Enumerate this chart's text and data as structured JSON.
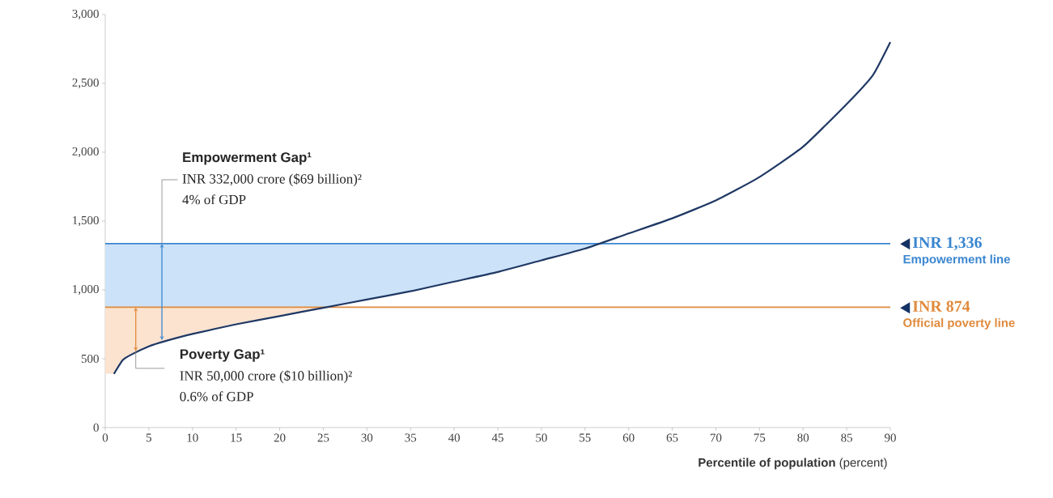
{
  "chart_data": {
    "type": "line",
    "xlabel": "**Percentile of population** (percent)",
    "xlim": [
      0,
      90
    ],
    "xticks": [
      0,
      5,
      10,
      15,
      20,
      25,
      30,
      35,
      40,
      45,
      50,
      55,
      60,
      65,
      70,
      75,
      80,
      85,
      90
    ],
    "ylim": [
      0,
      3000
    ],
    "yticks": [
      0,
      500,
      {
        "value": 1000,
        "label": "1,000"
      },
      {
        "value": 1500,
        "label": "1,500"
      },
      {
        "value": 2000,
        "label": "2,000"
      },
      {
        "value": 2500,
        "label": "2,500"
      },
      {
        "value": 3000,
        "label": "3,000"
      }
    ],
    "grid": false,
    "series": [
      {
        "color": "#1f3864",
        "x": [
          1,
          2,
          3,
          5,
          7,
          10,
          15,
          20,
          25,
          30,
          35,
          40,
          45,
          50,
          55,
          60,
          65,
          70,
          75,
          80,
          85,
          88,
          90
        ],
        "values": [
          390,
          490,
          530,
          590,
          630,
          680,
          750,
          810,
          870,
          930,
          990,
          1060,
          1130,
          1215,
          1300,
          1410,
          1520,
          1650,
          1820,
          2040,
          2350,
          2560,
          2800
        ]
      }
    ],
    "ref_lines": [
      {
        "axis": "y",
        "value": 1336,
        "label": "Empowerment line",
        "color": "#3a86d0"
      },
      {
        "axis": "y",
        "value": 874,
        "label": "Official poverty line",
        "color": "#e08a3c"
      }
    ],
    "bands": [
      {
        "axis": "y",
        "from": 874,
        "to": 1336,
        "color": "#cce2f8"
      },
      {
        "axis": "y",
        "from": 390,
        "to": 874,
        "color": "#fbe3d0"
      }
    ],
    "annotations": [
      {
        "text": "Empowerment Gap¹",
        "x": 6.5,
        "y": 1336
      },
      "INR 332,000 crore ($69 billion)²",
      "4% of GDP",
      {
        "text": "Poverty Gap¹",
        "x": 3.5,
        "y": 555
      },
      "INR 50,000 crore ($10 billion)²",
      "0.6% of GDP",
      {
        "text": "INR 1,336",
        "x": 90,
        "y": 1336
      },
      {
        "text": "INR 874",
        "x": 90,
        "y": 874
      }
    ]
  }
}
